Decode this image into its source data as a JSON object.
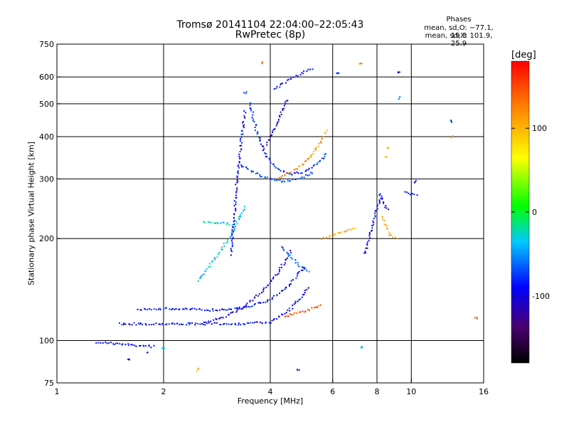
{
  "chart_data": {
    "type": "scatter",
    "title": "Tromsø 20141104 22:04:00–22:05:43",
    "subtitle": "RwPretec (8p)",
    "xlabel": "Frequency [MHz]",
    "ylabel": "Stationary phase Virtual Height [km]",
    "x_scale": "log",
    "y_scale": "log",
    "xlim": [
      1,
      16
    ],
    "ylim": [
      75,
      750
    ],
    "x_ticks": [
      1,
      2,
      4,
      6,
      8,
      10,
      16
    ],
    "y_ticks": [
      75,
      100,
      200,
      300,
      400,
      500,
      600,
      750
    ],
    "x_grid": [
      2,
      4,
      6,
      8,
      10
    ],
    "y_grid": [
      100,
      200,
      300,
      400,
      500,
      600
    ],
    "grid": true,
    "phase_stats": {
      "heading": "Phases",
      "line_o": "mean, sd,O: −77.1, 19.3",
      "line_x": "mean, sd,X: 101.9, 25.9"
    },
    "colorbar": {
      "label": "[deg]",
      "range": [
        -180,
        180
      ],
      "ticks": [
        100,
        0,
        -100
      ]
    },
    "traces": [
      {
        "x": [
          1.3,
          1.6,
          1.9
        ],
        "y": [
          99,
          97,
          96
        ],
        "phase": -100
      },
      {
        "x": [
          1.5,
          2.0,
          2.6,
          3.2,
          4.0,
          4.6,
          5.2
        ],
        "y": [
          112,
          112,
          112,
          112,
          113,
          125,
          145
        ],
        "phase": -100
      },
      {
        "x": [
          1.7,
          2.2,
          2.8,
          3.4,
          4.0,
          4.5,
          5.0
        ],
        "y": [
          124,
          124,
          123,
          125,
          132,
          145,
          165
        ],
        "phase": -95
      },
      {
        "x": [
          2.6,
          3.0,
          3.4,
          3.8,
          4.2,
          4.6
        ],
        "y": [
          113,
          118,
          126,
          140,
          158,
          185
        ],
        "phase": -110
      },
      {
        "x": [
          2.5,
          2.8,
          3.1,
          3.4
        ],
        "y": [
          150,
          175,
          205,
          250
        ],
        "phase": -40
      },
      {
        "x": [
          2.6,
          2.9,
          3.2
        ],
        "y": [
          225,
          222,
          220
        ],
        "phase": -40
      },
      {
        "x": [
          3.1,
          3.25,
          3.4
        ],
        "y": [
          180,
          330,
          480
        ],
        "phase": -100
      },
      {
        "x": [
          3.5,
          3.7,
          3.9,
          4.2,
          4.6,
          5.0,
          5.4,
          5.8
        ],
        "y": [
          500,
          400,
          350,
          320,
          310,
          315,
          330,
          360
        ],
        "phase": -90
      },
      {
        "x": [
          3.3,
          3.8,
          4.3,
          4.8,
          5.3
        ],
        "y": [
          330,
          305,
          295,
          300,
          315
        ],
        "phase": -80
      },
      {
        "x": [
          4.2,
          4.6,
          4.9,
          5.2,
          5.5,
          5.8
        ],
        "y": [
          300,
          315,
          330,
          350,
          380,
          420
        ],
        "phase": 120
      },
      {
        "x": [
          4.4,
          4.7,
          5.0,
          5.3,
          5.6
        ],
        "y": [
          118,
          120,
          122,
          125,
          128
        ],
        "phase": 150
      },
      {
        "x": [
          4.3,
          4.6,
          4.9,
          5.2
        ],
        "y": [
          190,
          175,
          165,
          160
        ],
        "phase": -70
      },
      {
        "x": [
          3.9,
          4.1,
          4.3,
          4.5
        ],
        "y": [
          380,
          420,
          470,
          520
        ],
        "phase": -110
      },
      {
        "x": [
          4.1,
          4.4,
          4.7,
          5.0,
          5.3
        ],
        "y": [
          550,
          580,
          600,
          620,
          640
        ],
        "phase": -100
      },
      {
        "x": [
          5.6,
          6.0,
          6.5,
          7.0
        ],
        "y": [
          200,
          205,
          210,
          215
        ],
        "phase": 110
      },
      {
        "x": [
          7.4,
          7.8,
          8.2,
          8.6
        ],
        "y": [
          180,
          220,
          270,
          240
        ],
        "phase": -100
      },
      {
        "x": [
          8.3,
          8.7,
          9.2
        ],
        "y": [
          230,
          205,
          200
        ],
        "phase": 110
      },
      {
        "x": [
          9.6,
          10.0,
          10.5
        ],
        "y": [
          275,
          270,
          270
        ],
        "phase": -110
      }
    ],
    "scattered": [
      {
        "x": 3.4,
        "y": 540,
        "phase": -80
      },
      {
        "x": 3.8,
        "y": 660,
        "phase": 130
      },
      {
        "x": 6.2,
        "y": 620,
        "phase": -90
      },
      {
        "x": 7.2,
        "y": 655,
        "phase": 130
      },
      {
        "x": 9.2,
        "y": 620,
        "phase": -100
      },
      {
        "x": 9.2,
        "y": 520,
        "phase": -60
      },
      {
        "x": 12.9,
        "y": 445,
        "phase": -80
      },
      {
        "x": 13.0,
        "y": 400,
        "phase": 100
      },
      {
        "x": 15.2,
        "y": 117,
        "phase": 150
      },
      {
        "x": 2.5,
        "y": 82,
        "phase": 100
      },
      {
        "x": 4.8,
        "y": 82,
        "phase": -90
      },
      {
        "x": 7.2,
        "y": 95,
        "phase": -40
      },
      {
        "x": 8.5,
        "y": 350,
        "phase": 100
      },
      {
        "x": 8.6,
        "y": 370,
        "phase": 110
      },
      {
        "x": 10.3,
        "y": 295,
        "phase": -100
      },
      {
        "x": 1.6,
        "y": 88,
        "phase": -110
      },
      {
        "x": 1.8,
        "y": 92,
        "phase": -100
      },
      {
        "x": 2.0,
        "y": 95,
        "phase": -40
      }
    ]
  }
}
